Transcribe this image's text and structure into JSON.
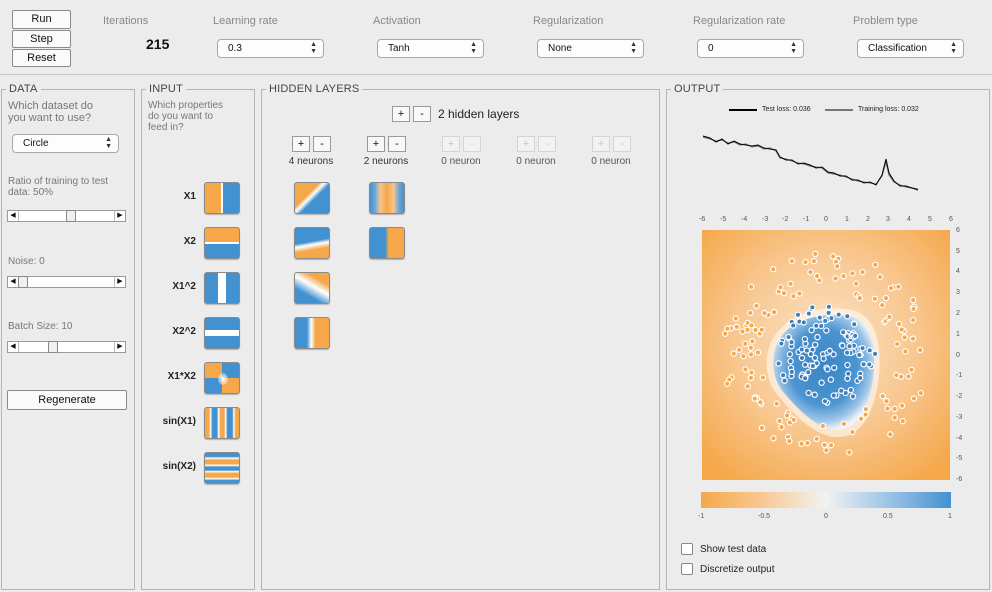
{
  "controls": {
    "run": "Run",
    "step": "Step",
    "reset": "Reset"
  },
  "header": {
    "iterations_label": "Iterations",
    "iterations_value": "215",
    "learning_rate_label": "Learning rate",
    "learning_rate_value": "0.3",
    "activation_label": "Activation",
    "activation_value": "Tanh",
    "regularization_label": "Regularization",
    "regularization_value": "None",
    "regularization_rate_label": "Regularization rate",
    "regularization_rate_value": "0",
    "problem_type_label": "Problem type",
    "problem_type_value": "Classification"
  },
  "data_panel": {
    "title": "DATA",
    "question": "Which dataset do you want to use?",
    "dataset_value": "Circle",
    "ratio_label": "Ratio of training to test data:  50%",
    "ratio_value": 0.5,
    "noise_label": "Noise:  0",
    "noise_value": 0,
    "batch_label": "Batch Size:  10",
    "batch_value": 10,
    "regenerate": "Regenerate"
  },
  "input_panel": {
    "title": "INPUT",
    "question": "Which properties do you want to feed in?",
    "features": [
      "X1",
      "X2",
      "X1^2",
      "X2^2",
      "X1*X2",
      "sin(X1)",
      "sin(X2)"
    ]
  },
  "hidden_panel": {
    "title": "HIDDEN LAYERS",
    "layers_label": "2 hidden layers",
    "plus": "+",
    "minus": "-",
    "neuron_counts": [
      "4 neurons",
      "2 neurons",
      "0 neuron",
      "0 neuron",
      "0 neuron"
    ]
  },
  "output_panel": {
    "title": "OUTPUT",
    "test_loss": "Test loss: 0.036",
    "training_loss": "Training loss: 0.032",
    "axis_ticks": [
      "-6",
      "-5",
      "-4",
      "-3",
      "-2",
      "-1",
      "0",
      "1",
      "2",
      "3",
      "4",
      "5",
      "6"
    ],
    "colorbar_ticks": [
      "-1",
      "-0.5",
      "0",
      "0.5",
      "1"
    ],
    "show_test_data": "Show test data",
    "discretize_output": "Discretize output"
  },
  "colors": {
    "orange": "#f5a74a",
    "blue": "#4291d0",
    "panel_bg": "#ececec"
  }
}
